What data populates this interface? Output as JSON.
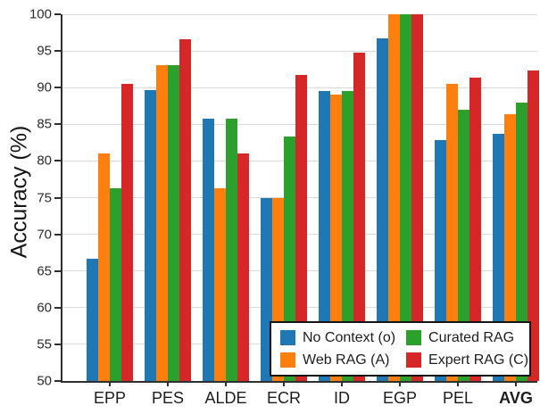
{
  "chart_data": {
    "type": "bar",
    "title": "",
    "ylabel": "Accuracy (%)",
    "xlabel": "",
    "ylim": [
      50,
      100
    ],
    "yticks": [
      50,
      55,
      60,
      65,
      70,
      75,
      80,
      85,
      90,
      95,
      100
    ],
    "grid": true,
    "legend_position": "lower-right",
    "categories": [
      "EPP",
      "PES",
      "ALDE",
      "ECR",
      "ID",
      "EGP",
      "PEL",
      "AVG"
    ],
    "bold_category": "AVG",
    "series": [
      {
        "name": "No Context (o)",
        "color": "#1f77b4",
        "values": [
          66.7,
          89.7,
          85.8,
          75.0,
          89.5,
          96.7,
          82.8,
          83.7
        ]
      },
      {
        "name": "Web RAG (A)",
        "color": "#ff7f0e",
        "values": [
          81.0,
          93.1,
          76.3,
          75.0,
          89.0,
          100.0,
          90.5,
          86.4
        ]
      },
      {
        "name": "Curated RAG",
        "color": "#2ca02c",
        "values": [
          76.3,
          93.1,
          85.8,
          83.3,
          89.5,
          100.0,
          87.0,
          88.0
        ]
      },
      {
        "name": "Expert RAG (C)",
        "color": "#d62728",
        "values": [
          90.5,
          96.6,
          81.0,
          91.7,
          94.8,
          100.0,
          91.4,
          92.3
        ]
      }
    ]
  }
}
